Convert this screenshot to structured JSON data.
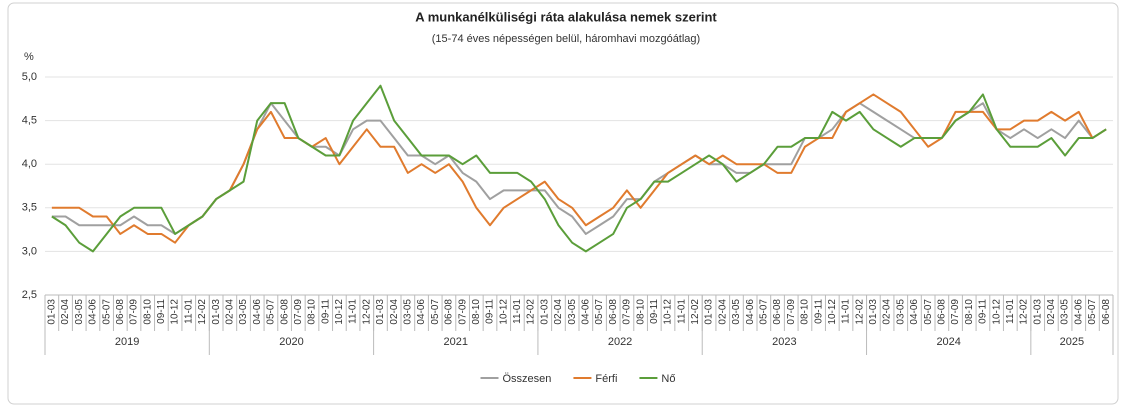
{
  "chart_data": {
    "type": "line",
    "title": "A munkanélküliségi ráta alakulása nemek szerint",
    "subtitle": "(15-74 éves népességen belül, háromhavi mozgóátlag)",
    "y_label": "%",
    "categories": [
      "01-03",
      "02-04",
      "03-05",
      "04-06",
      "05-07",
      "06-08",
      "07-09",
      "08-10",
      "09-11",
      "10-12",
      "11-01",
      "12-02",
      "01-03",
      "02-04",
      "03-05",
      "04-06",
      "05-07",
      "06-08",
      "07-09",
      "08-10",
      "09-11",
      "10-12",
      "11-01",
      "12-02",
      "01-03",
      "02-04",
      "03-05",
      "04-06",
      "05-07",
      "06-08",
      "07-09",
      "08-10",
      "09-11",
      "10-12",
      "11-01",
      "12-02",
      "01-03",
      "02-04",
      "03-05",
      "04-06",
      "05-07",
      "06-08",
      "07-09",
      "08-10",
      "09-11",
      "10-12",
      "11-01",
      "12-02",
      "01-03",
      "02-04",
      "03-05",
      "04-06",
      "05-07",
      "06-08",
      "07-09",
      "08-10",
      "09-11",
      "10-12",
      "11-01",
      "12-02",
      "01-03",
      "02-04",
      "03-05",
      "04-06",
      "05-07",
      "06-08",
      "07-09",
      "08-10",
      "09-11",
      "10-12",
      "11-01",
      "12-02",
      "01-03",
      "02-04",
      "03-05",
      "04-06",
      "05-07",
      "06-08"
    ],
    "years": [
      "2019",
      "2020",
      "2021",
      "2022",
      "2023",
      "2024",
      "2025"
    ],
    "series": [
      {
        "name": "Összesen",
        "color": "#a0a0a0",
        "values": [
          3.4,
          3.4,
          3.3,
          3.3,
          3.3,
          3.3,
          3.4,
          3.3,
          3.3,
          3.2,
          3.3,
          3.4,
          3.6,
          3.7,
          4.0,
          4.4,
          4.7,
          4.5,
          4.3,
          4.2,
          4.2,
          4.1,
          4.4,
          4.5,
          4.5,
          4.3,
          4.1,
          4.1,
          4.0,
          4.1,
          3.9,
          3.8,
          3.6,
          3.7,
          3.7,
          3.7,
          3.7,
          3.5,
          3.4,
          3.2,
          3.3,
          3.4,
          3.6,
          3.6,
          3.8,
          3.9,
          4.0,
          4.1,
          4.0,
          4.0,
          3.9,
          3.9,
          4.0,
          4.0,
          4.0,
          4.3,
          4.3,
          4.4,
          4.6,
          4.7,
          4.6,
          4.5,
          4.4,
          4.3,
          4.3,
          4.3,
          4.5,
          4.6,
          4.7,
          4.4,
          4.3,
          4.4,
          4.3,
          4.4,
          4.3,
          4.5,
          4.3,
          4.4
        ]
      },
      {
        "name": "Férfi",
        "color": "#e07b2e",
        "values": [
          3.5,
          3.5,
          3.5,
          3.4,
          3.4,
          3.2,
          3.3,
          3.2,
          3.2,
          3.1,
          3.3,
          3.4,
          3.6,
          3.7,
          4.0,
          4.4,
          4.6,
          4.3,
          4.3,
          4.2,
          4.3,
          4.0,
          4.2,
          4.4,
          4.2,
          4.2,
          3.9,
          4.0,
          3.9,
          4.0,
          3.8,
          3.5,
          3.3,
          3.5,
          3.6,
          3.7,
          3.8,
          3.6,
          3.5,
          3.3,
          3.4,
          3.5,
          3.7,
          3.5,
          3.7,
          3.9,
          4.0,
          4.1,
          4.0,
          4.1,
          4.0,
          4.0,
          4.0,
          3.9,
          3.9,
          4.2,
          4.3,
          4.3,
          4.6,
          4.7,
          4.8,
          4.7,
          4.6,
          4.4,
          4.2,
          4.3,
          4.6,
          4.6,
          4.6,
          4.4,
          4.4,
          4.5,
          4.5,
          4.6,
          4.5,
          4.6,
          4.3,
          4.4
        ]
      },
      {
        "name": "Nő",
        "color": "#5b9e3a",
        "values": [
          3.4,
          3.3,
          3.1,
          3.0,
          3.2,
          3.4,
          3.5,
          3.5,
          3.5,
          3.2,
          3.3,
          3.4,
          3.6,
          3.7,
          3.8,
          4.5,
          4.7,
          4.7,
          4.3,
          4.2,
          4.1,
          4.1,
          4.5,
          4.7,
          4.9,
          4.5,
          4.3,
          4.1,
          4.1,
          4.1,
          4.0,
          4.1,
          3.9,
          3.9,
          3.9,
          3.8,
          3.6,
          3.3,
          3.1,
          3.0,
          3.1,
          3.2,
          3.5,
          3.6,
          3.8,
          3.8,
          3.9,
          4.0,
          4.1,
          4.0,
          3.8,
          3.9,
          4.0,
          4.2,
          4.2,
          4.3,
          4.3,
          4.6,
          4.5,
          4.6,
          4.4,
          4.3,
          4.2,
          4.3,
          4.3,
          4.3,
          4.5,
          4.6,
          4.8,
          4.4,
          4.2,
          4.2,
          4.2,
          4.3,
          4.1,
          4.3,
          4.3,
          4.4
        ]
      }
    ],
    "ylim": [
      2.5,
      5.0
    ],
    "yticks": [
      {
        "value": 2.5,
        "label": "2,5"
      },
      {
        "value": 3.0,
        "label": "3,0"
      },
      {
        "value": 3.5,
        "label": "3,5"
      },
      {
        "value": 4.0,
        "label": "4,0"
      },
      {
        "value": 4.5,
        "label": "4,5"
      },
      {
        "value": 5.0,
        "label": "5,0"
      }
    ],
    "grid": true,
    "legend": "bottom"
  }
}
